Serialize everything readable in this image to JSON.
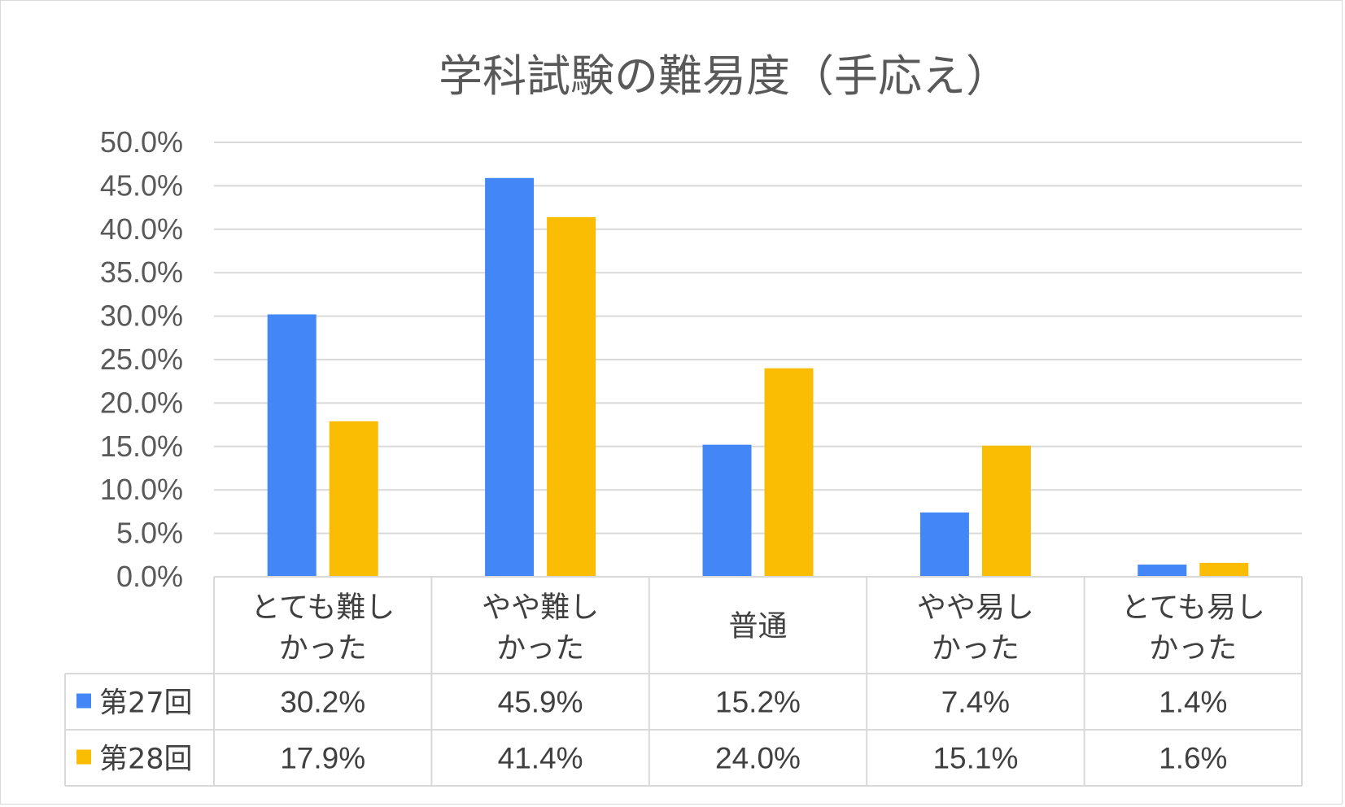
{
  "chart_data": {
    "type": "bar",
    "title": "学科試験の難易度（手応え）",
    "categories": [
      [
        "とても難し",
        "かった"
      ],
      [
        "やや難し",
        "かった"
      ],
      [
        "普通"
      ],
      [
        "やや易し",
        "かった"
      ],
      [
        "とても易し",
        "かった"
      ]
    ],
    "series": [
      {
        "name": "第27回",
        "color": "#4287f5",
        "values": [
          30.2,
          45.9,
          15.2,
          7.4,
          1.4
        ],
        "labels": [
          "30.2%",
          "45.9%",
          "15.2%",
          "7.4%",
          "1.4%"
        ]
      },
      {
        "name": "第28回",
        "color": "#fbbc04",
        "values": [
          17.9,
          41.4,
          24.0,
          15.1,
          1.6
        ],
        "labels": [
          "17.9%",
          "41.4%",
          "24.0%",
          "15.1%",
          "1.6%"
        ]
      }
    ],
    "ylim": [
      0,
      50
    ],
    "yticks": [
      "0.0%",
      "5.0%",
      "10.0%",
      "15.0%",
      "20.0%",
      "25.0%",
      "30.0%",
      "35.0%",
      "40.0%",
      "45.0%",
      "50.0%"
    ],
    "grid": true,
    "legend": "data-table"
  }
}
